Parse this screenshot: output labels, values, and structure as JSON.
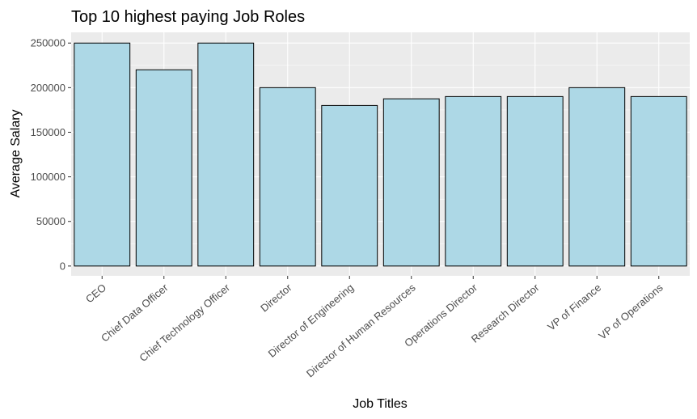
{
  "chart_data": {
    "type": "bar",
    "title": "Top 10 highest paying Job Roles",
    "xlabel": "Job Titles",
    "ylabel": "Average Salary",
    "categories": [
      "CEO",
      "Chief Data Officer",
      "Chief Technology Officer",
      "Director",
      "Director of Engineering",
      "Director of Human Resources",
      "Operations Director",
      "Research Director",
      "VP of Finance",
      "VP of Operations"
    ],
    "values": [
      250000,
      220000,
      250000,
      200000,
      180000,
      187500,
      190000,
      190000,
      200000,
      190000
    ],
    "ylim": [
      -11000,
      262000
    ],
    "yticks": [
      0,
      50000,
      100000,
      150000,
      200000,
      250000
    ],
    "ytick_labels": [
      "0",
      "50000",
      "100000",
      "150000",
      "200000",
      "250000"
    ],
    "grid": true,
    "colors": {
      "panel_background": "#ebebeb",
      "bar_fill": "#add8e6",
      "bar_outline": "#000000",
      "grid": "#ffffff",
      "tick_text": "#4d4d4d"
    }
  }
}
